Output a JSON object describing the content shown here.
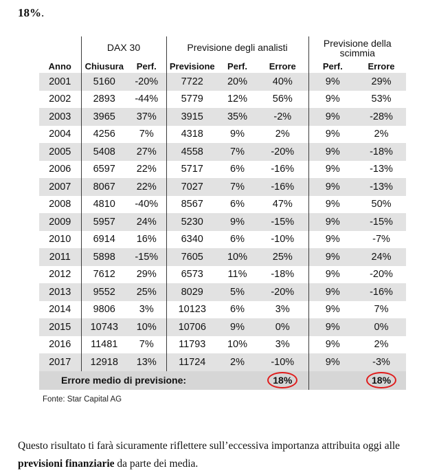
{
  "intro": {
    "bold_value": "18%",
    "period": "."
  },
  "table": {
    "groups": {
      "dax": "DAX 30",
      "analysts": "Previsione degli analisti",
      "monkey": "Previsione della scimmia"
    },
    "columns": [
      "Anno",
      "Chiusura",
      "Perf.",
      "Previsione",
      "Perf.",
      "Errore",
      "Perf.",
      "Errore"
    ],
    "rows": [
      [
        "2001",
        "5160",
        "-20%",
        "7722",
        "20%",
        "40%",
        "9%",
        "29%"
      ],
      [
        "2002",
        "2893",
        "-44%",
        "5779",
        "12%",
        "56%",
        "9%",
        "53%"
      ],
      [
        "2003",
        "3965",
        "37%",
        "3915",
        "35%",
        "-2%",
        "9%",
        "-28%"
      ],
      [
        "2004",
        "4256",
        "7%",
        "4318",
        "9%",
        "2%",
        "9%",
        "2%"
      ],
      [
        "2005",
        "5408",
        "27%",
        "4558",
        "7%",
        "-20%",
        "9%",
        "-18%"
      ],
      [
        "2006",
        "6597",
        "22%",
        "5717",
        "6%",
        "-16%",
        "9%",
        "-13%"
      ],
      [
        "2007",
        "8067",
        "22%",
        "7027",
        "7%",
        "-16%",
        "9%",
        "-13%"
      ],
      [
        "2008",
        "4810",
        "-40%",
        "8567",
        "6%",
        "47%",
        "9%",
        "50%"
      ],
      [
        "2009",
        "5957",
        "24%",
        "5230",
        "9%",
        "-15%",
        "9%",
        "-15%"
      ],
      [
        "2010",
        "6914",
        "16%",
        "6340",
        "6%",
        "-10%",
        "9%",
        "-7%"
      ],
      [
        "2011",
        "5898",
        "-15%",
        "7605",
        "10%",
        "25%",
        "9%",
        "24%"
      ],
      [
        "2012",
        "7612",
        "29%",
        "6573",
        "11%",
        "-18%",
        "9%",
        "-20%"
      ],
      [
        "2013",
        "9552",
        "25%",
        "8029",
        "5%",
        "-20%",
        "9%",
        "-16%"
      ],
      [
        "2014",
        "9806",
        "3%",
        "10123",
        "6%",
        "3%",
        "9%",
        "7%"
      ],
      [
        "2015",
        "10743",
        "10%",
        "10706",
        "9%",
        "0%",
        "9%",
        "0%"
      ],
      [
        "2016",
        "11481",
        "7%",
        "11793",
        "10%",
        "3%",
        "9%",
        "2%"
      ],
      [
        "2017",
        "12918",
        "13%",
        "11724",
        "2%",
        "-10%",
        "9%",
        "-3%"
      ]
    ],
    "footer": {
      "label": "Errore medio di previsione:",
      "analysts_error": "18%",
      "monkey_error": "18%"
    },
    "highlight_color": "#e01b1b"
  },
  "source": "Fonte: Star Capital AG",
  "paragraph": {
    "text_before": "Questo risultato ti farà sicuramente riflettere sull’eccessiva importanza attribuita oggi alle ",
    "bold_text": "previsioni finanziarie",
    "text_after": " da parte dei media."
  }
}
